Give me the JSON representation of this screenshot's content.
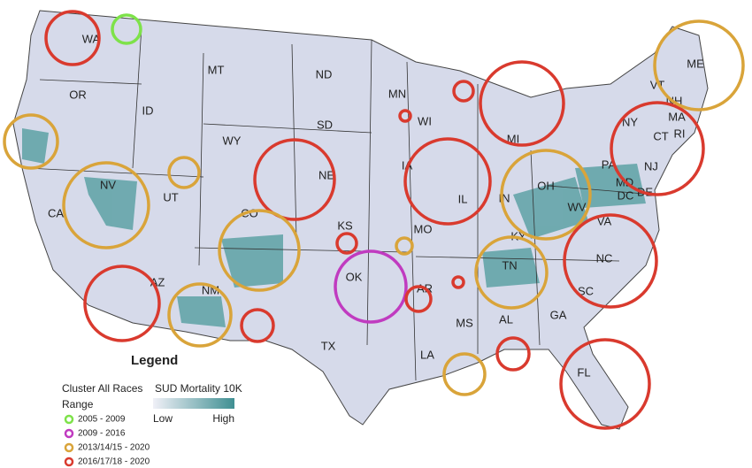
{
  "map": {
    "state_labels": [
      "WA",
      "MT",
      "ND",
      "MN",
      "OR",
      "ID",
      "SD",
      "WI",
      "MI",
      "WY",
      "NE",
      "IA",
      "NV",
      "UT",
      "CO",
      "KS",
      "MO",
      "IL",
      "IN",
      "OH",
      "CA",
      "KY",
      "WV",
      "VA",
      "NY",
      "VT",
      "NH",
      "ME",
      "MA",
      "CT",
      "RI",
      "PA",
      "NJ",
      "MD",
      "DE",
      "DC",
      "TN",
      "NC",
      "SC",
      "OK",
      "AR",
      "AZ",
      "NM",
      "MS",
      "AL",
      "GA",
      "TX",
      "LA",
      "FL"
    ],
    "legend": {
      "title": "Legend",
      "cluster_title": "Cluster All Races",
      "range_title": "Range",
      "ranges": [
        {
          "label": "2005 - 2009",
          "color": "#7ee24a"
        },
        {
          "label": "2009 - 2016",
          "color": "#c03bc0"
        },
        {
          "label": "2013/14/15 - 2020",
          "color": "#d9a43a"
        },
        {
          "label": "2016/17/18 - 2020",
          "color": "#d93a2e"
        }
      ],
      "scale_title": "SUD Mortality 10K",
      "scale_low": "Low",
      "scale_high": "High",
      "scale_colors": [
        "#f0f0f7",
        "#3f8f92"
      ]
    }
  }
}
